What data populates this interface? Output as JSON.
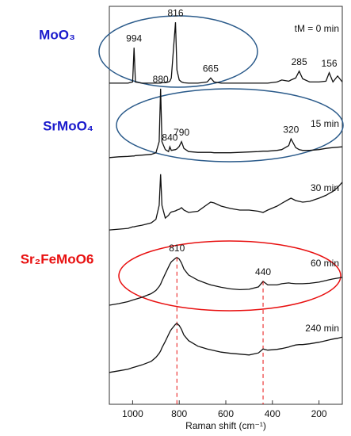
{
  "chart_data": {
    "type": "line",
    "x_label": "Raman shift (cm⁻¹)",
    "xlim": [
      1100,
      100
    ],
    "xticks": [
      1000,
      800,
      600,
      400,
      200
    ],
    "ylim": [
      0,
      100
    ],
    "x": [
      1100,
      1060,
      1020,
      1000,
      994,
      988,
      960,
      920,
      900,
      886,
      880,
      874,
      860,
      846,
      840,
      834,
      816,
      810,
      800,
      790,
      780,
      760,
      720,
      680,
      665,
      650,
      620,
      580,
      540,
      500,
      460,
      440,
      420,
      380,
      360,
      330,
      320,
      300,
      285,
      270,
      240,
      200,
      170,
      156,
      140,
      120,
      100
    ],
    "series": [
      {
        "name": "tM = 0 min",
        "color": "#111111",
        "phase": "MoO₃",
        "phase_color": "#1a1acc",
        "peaks": [
          994,
          816,
          665,
          285,
          156
        ],
        "values": [
          80.7,
          80.7,
          80.7,
          81,
          89.6,
          81,
          80.7,
          80.7,
          80.7,
          80.7,
          80.7,
          80.8,
          80.8,
          81,
          81.2,
          82,
          96,
          84,
          81.5,
          81,
          80.8,
          80.7,
          80.7,
          81,
          82,
          81,
          80.7,
          80.7,
          80.7,
          80.7,
          80.7,
          80.7,
          80.7,
          81,
          81.5,
          81.2,
          81.5,
          82,
          83.7,
          81.8,
          81,
          81,
          81.2,
          83.3,
          81,
          82.5,
          81
        ]
      },
      {
        "name": "15 min",
        "color": "#111111",
        "phase": "SrMoO₄",
        "phase_color": "#1a1acc",
        "peaks": [
          880,
          840,
          790,
          320
        ],
        "values": [
          62,
          62.2,
          62.3,
          62.4,
          62.4,
          62.5,
          62.6,
          62.8,
          63.2,
          66,
          79.3,
          66,
          64,
          63.5,
          64.7,
          63.8,
          64,
          64.2,
          64.8,
          66,
          64.3,
          63.5,
          63.3,
          63.3,
          63.3,
          63.2,
          63.2,
          63.2,
          63.3,
          63.4,
          63.5,
          63.6,
          63.6,
          63.8,
          64,
          65,
          66.7,
          64.5,
          64,
          63.8,
          63.8,
          64,
          64.3,
          64.4,
          64.5,
          64.6,
          64.7
        ]
      },
      {
        "name": "30 min",
        "color": "#111111",
        "values": [
          43.8,
          44,
          44.2,
          44.6,
          44.6,
          44.7,
          45,
          45.6,
          46.5,
          50,
          57.8,
          50,
          46.8,
          47.5,
          48,
          48.3,
          48.6,
          48.8,
          49,
          49.4,
          48.8,
          48.2,
          48.5,
          50.2,
          50.8,
          50.6,
          49.8,
          49.2,
          48.8,
          48.8,
          48.5,
          48.2,
          48.8,
          49.8,
          50.5,
          51.5,
          51.8,
          51.2,
          51,
          50.8,
          51,
          51.8,
          52.5,
          53,
          53.5,
          54.5,
          55.8
        ]
      },
      {
        "name": "60 min",
        "color": "#111111",
        "phase": "Sr₂FeMoO6",
        "phase_color": "#e81010",
        "peaks": [
          810,
          440
        ],
        "values": [
          24.9,
          25.3,
          25.8,
          26.2,
          26.3,
          26.4,
          26.9,
          27.8,
          28.6,
          29.6,
          30.2,
          31,
          32.8,
          34.5,
          35.2,
          35.8,
          36.7,
          36.9,
          36.5,
          35.5,
          34,
          32.5,
          31.2,
          30.3,
          30,
          29.8,
          29.4,
          29,
          28.8,
          28.9,
          29.5,
          30.9,
          30,
          30,
          30.3,
          30.5,
          30.4,
          30.3,
          30.3,
          30.3,
          30.4,
          30.7,
          31.1,
          31.3,
          31.5,
          31.7,
          31.9
        ]
      },
      {
        "name": "240 min",
        "color": "#111111",
        "values": [
          8,
          8.4,
          8.8,
          9.2,
          9.3,
          9.4,
          9.9,
          10.8,
          11.8,
          12.8,
          13.4,
          14.2,
          15.8,
          17.5,
          18.2,
          18.8,
          20.1,
          20.3,
          19.8,
          18.8,
          17.4,
          16,
          14.6,
          13.9,
          13.7,
          13.5,
          13.1,
          12.8,
          12.6,
          12.4,
          12.9,
          13.9,
          13.6,
          13.8,
          14,
          14.4,
          14.6,
          14.9,
          15,
          15,
          15.2,
          15.6,
          16,
          16.2,
          16.4,
          16.6,
          16.9
        ]
      }
    ]
  }
}
